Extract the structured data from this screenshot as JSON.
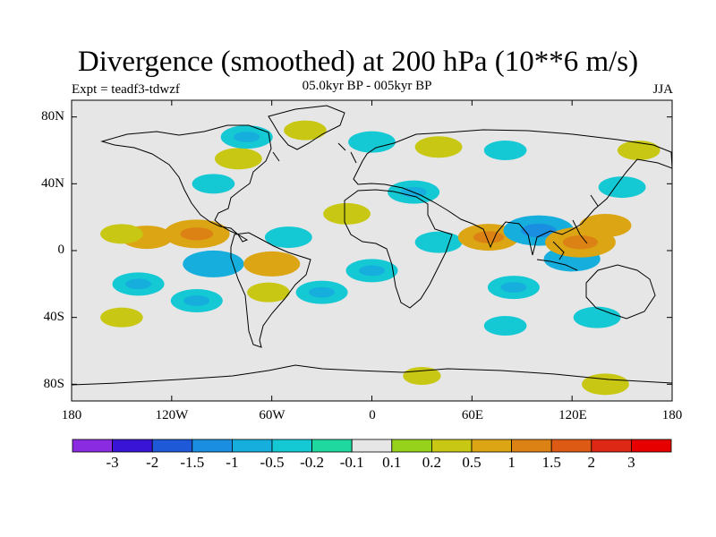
{
  "header": {
    "title": "Divergence (smoothed) at 200 hPa (10**6 m/s)",
    "experiment": "Expt = teadf3-tdwzf",
    "period": "05.0kyr BP - 005kyr BP",
    "season": "JJA"
  },
  "axes": {
    "lat_labels": [
      "80N",
      "40N",
      "0",
      "40S",
      "80S"
    ],
    "lon_labels": [
      "180",
      "120W",
      "60W",
      "0",
      "60E",
      "120E",
      "180"
    ]
  },
  "colorbar": {
    "labels": [
      "-3",
      "-2",
      "-1.5",
      "-1",
      "-0.5",
      "-0.2",
      "-0.1",
      "0.1",
      "0.2",
      "0.5",
      "1",
      "1.5",
      "2",
      "3"
    ],
    "colors": [
      "#8a2be2",
      "#3a14d6",
      "#1e5ad8",
      "#1a8ee0",
      "#16aedc",
      "#14c8d4",
      "#1ed8a0",
      "#e6e6e6",
      "#96d21c",
      "#c8c814",
      "#dca514",
      "#dc8214",
      "#dc5a14",
      "#dc2814",
      "#e60000"
    ]
  },
  "chart_data": {
    "type": "heatmap",
    "title": "Divergence (smoothed) at 200 hPa (10**6 m/s)",
    "projection": "cylindrical equidistant",
    "lon_range": [
      -180,
      180
    ],
    "lat_range": [
      -90,
      90
    ],
    "xlabel": "",
    "ylabel": "",
    "contour_levels": [
      -3,
      -2,
      -1.5,
      -1,
      -0.5,
      -0.2,
      -0.1,
      0.1,
      0.2,
      0.5,
      1,
      1.5,
      2,
      3
    ],
    "patches": [
      {
        "lon": -105,
        "lat": 10,
        "value": 0.8
      },
      {
        "lon": -135,
        "lat": 8,
        "value": 0.5
      },
      {
        "lon": -150,
        "lat": 10,
        "value": 0.3
      },
      {
        "lon": -95,
        "lat": -8,
        "value": -0.7
      },
      {
        "lon": -140,
        "lat": -20,
        "value": -0.5
      },
      {
        "lon": -105,
        "lat": -30,
        "value": -0.5
      },
      {
        "lon": -150,
        "lat": -40,
        "value": 0.3
      },
      {
        "lon": -60,
        "lat": -8,
        "value": 0.6
      },
      {
        "lon": -62,
        "lat": -25,
        "value": 0.3
      },
      {
        "lon": -50,
        "lat": 8,
        "value": -0.4
      },
      {
        "lon": -30,
        "lat": -25,
        "value": -0.5
      },
      {
        "lon": -15,
        "lat": 22,
        "value": 0.4
      },
      {
        "lon": 0,
        "lat": -12,
        "value": -0.5
      },
      {
        "lon": 25,
        "lat": 35,
        "value": -0.5
      },
      {
        "lon": 40,
        "lat": 5,
        "value": -0.4
      },
      {
        "lon": 70,
        "lat": 8,
        "value": 0.7
      },
      {
        "lon": 85,
        "lat": -22,
        "value": -0.5
      },
      {
        "lon": 80,
        "lat": -45,
        "value": -0.3
      },
      {
        "lon": 100,
        "lat": 12,
        "value": -0.9
      },
      {
        "lon": 120,
        "lat": -5,
        "value": -0.6
      },
      {
        "lon": 125,
        "lat": 5,
        "value": 0.9
      },
      {
        "lon": 140,
        "lat": 15,
        "value": 0.5
      },
      {
        "lon": 150,
        "lat": 38,
        "value": -0.4
      },
      {
        "lon": 135,
        "lat": -40,
        "value": -0.4
      },
      {
        "lon": -95,
        "lat": 40,
        "value": -0.3
      },
      {
        "lon": -80,
        "lat": 55,
        "value": 0.4
      },
      {
        "lon": -75,
        "lat": 68,
        "value": -0.5
      },
      {
        "lon": -40,
        "lat": 72,
        "value": 0.3
      },
      {
        "lon": 0,
        "lat": 65,
        "value": -0.4
      },
      {
        "lon": 40,
        "lat": 62,
        "value": 0.4
      },
      {
        "lon": 80,
        "lat": 60,
        "value": -0.3
      },
      {
        "lon": 160,
        "lat": 60,
        "value": 0.3
      },
      {
        "lon": 140,
        "lat": -80,
        "value": 0.4
      },
      {
        "lon": 30,
        "lat": -75,
        "value": 0.2
      }
    ]
  }
}
